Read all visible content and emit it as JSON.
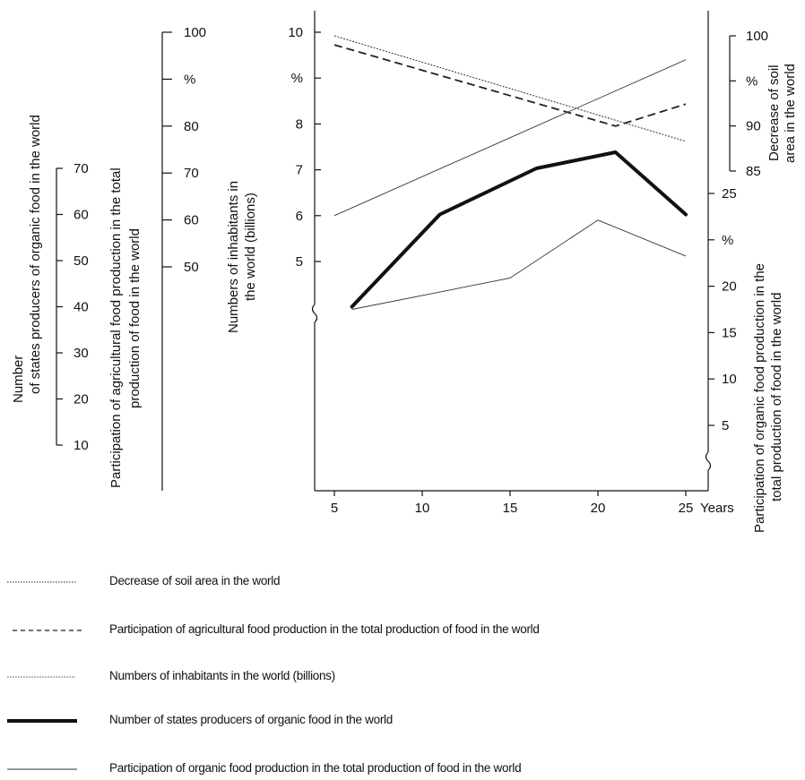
{
  "chart_data": {
    "type": "line",
    "x_axis": {
      "label": "Years",
      "ticks": [
        "5",
        "10",
        "15",
        "20",
        "25"
      ],
      "range": [
        4,
        26
      ]
    },
    "axes": {
      "states": {
        "title": "Number of states producers of organic food in the world",
        "ticks": [
          "70",
          "60",
          "50",
          "40",
          "30",
          "20",
          "10"
        ],
        "range": [
          10,
          70
        ]
      },
      "agri_share": {
        "title": "Participation of agricultural food production in the total production of food in the world",
        "ticks": [
          "100",
          "%",
          "80",
          "70",
          "60",
          "50"
        ],
        "range": [
          50,
          100
        ]
      },
      "inhabitants": {
        "title": "Numbers of inhabitants in the world (billions)",
        "ticks": [
          "10",
          "%",
          "8",
          "7",
          "6",
          "5"
        ],
        "range": [
          5,
          10
        ],
        "broken": true
      },
      "soil": {
        "title": "Decrease of soil area in the world",
        "ticks": [
          "100",
          "%",
          "90",
          "85"
        ],
        "range": [
          85,
          100
        ]
      },
      "organic_share": {
        "title": "Participation of organic food production in the total production of food in the world",
        "ticks": [
          "25",
          "%",
          "20",
          "15",
          "10",
          "5"
        ],
        "range": [
          5,
          25
        ],
        "broken": true
      }
    },
    "series": [
      {
        "name": "Decrease of soil area in the world",
        "axis": "soil",
        "style": "dotted",
        "x": [
          5,
          25
        ],
        "y": [
          100,
          88.3
        ]
      },
      {
        "name": "Participation of agricultural food production in the total production of food in the world",
        "axis": "agri_share",
        "style": "dashed",
        "x": [
          5,
          21,
          25
        ],
        "y": [
          97.3,
          80,
          84.7
        ]
      },
      {
        "name": "Numbers of inhabitants in the world (billions)",
        "axis": "inhabitants",
        "style": "thin",
        "x": [
          5,
          25
        ],
        "y": [
          6,
          9.4
        ]
      },
      {
        "name": "Number of states producers of organic food in the world",
        "axis": "states",
        "style": "thick",
        "x": [
          6,
          11,
          16.5,
          21,
          25
        ],
        "y": [
          40,
          60,
          70,
          73.5,
          60
        ]
      },
      {
        "name": "Participation of organic food production in the total production of food in the world",
        "axis": "organic_share",
        "style": "thin",
        "x": [
          6,
          15,
          20,
          25
        ],
        "y": [
          15,
          17.7,
          22.7,
          19.6
        ]
      }
    ],
    "legend_position": "bottom",
    "grid": false
  }
}
